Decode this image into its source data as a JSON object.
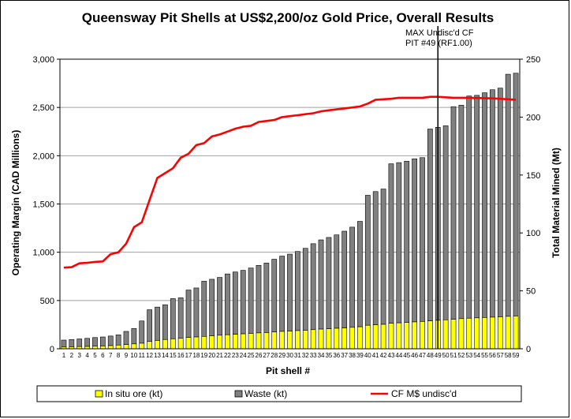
{
  "chart_data": {
    "type": "bar",
    "title": "Queensway Pit Shells at US$2,200/oz Gold Price, Overall Results",
    "xlabel": "Pit shell #",
    "ylabel": "Operating Margin (CAD  Millions)",
    "y2label": "Total Material Mined (Mt)",
    "ylim": [
      0,
      3000
    ],
    "y2lim": [
      0,
      250
    ],
    "yticks": [
      "0",
      "500",
      "1,000",
      "1,500",
      "2,000",
      "2,500",
      "3,000"
    ],
    "y2ticks": [
      "0",
      "50",
      "100",
      "150",
      "200",
      "250"
    ],
    "grid": true,
    "legend_position": "bottom",
    "categories": [
      "1",
      "2",
      "3",
      "4",
      "5",
      "6",
      "7",
      "8",
      "9",
      "10",
      "11",
      "12",
      "13",
      "14",
      "15",
      "16",
      "17",
      "18",
      "19",
      "20",
      "21",
      "22",
      "23",
      "24",
      "25",
      "26",
      "27",
      "28",
      "29",
      "30",
      "31",
      "32",
      "33",
      "34",
      "35",
      "36",
      "37",
      "38",
      "39",
      "40",
      "41",
      "42",
      "43",
      "44",
      "45",
      "46",
      "47",
      "48",
      "49",
      "50",
      "51",
      "52",
      "53",
      "54",
      "55",
      "56",
      "57",
      "58",
      "59"
    ],
    "series": [
      {
        "name": "In situ ore (kt)",
        "axis": "right",
        "style": "stacked-bar",
        "color": "#ffff00",
        "values": [
          1.5,
          1.7,
          1.9,
          2.0,
          2.2,
          2.4,
          2.7,
          3.2,
          3.7,
          4.2,
          4.8,
          6.3,
          7.2,
          8.0,
          8.6,
          9.0,
          9.8,
          10.2,
          10.7,
          11.2,
          11.7,
          12.1,
          12.5,
          12.9,
          13.3,
          13.7,
          14.0,
          14.5,
          15.0,
          15.3,
          15.7,
          16.0,
          16.5,
          17.0,
          17.3,
          17.7,
          18.0,
          18.5,
          19.0,
          20.3,
          20.7,
          21.1,
          22.0,
          22.4,
          22.8,
          23.2,
          23.6,
          24.1,
          24.6,
          25.0,
          25.5,
          26.0,
          26.4,
          26.7,
          27.0,
          27.3,
          27.6,
          28.0,
          28.3
        ]
      },
      {
        "name": "Waste (kt)",
        "axis": "right",
        "style": "stacked-bar",
        "color": "#808080",
        "values": [
          6.0,
          6.3,
          6.6,
          7.0,
          7.5,
          7.8,
          8.3,
          8.8,
          11.3,
          13.3,
          19.2,
          27.4,
          28.8,
          30.0,
          34.7,
          35.0,
          40.9,
          42.3,
          47.6,
          48.8,
          49.9,
          52.5,
          53.8,
          54.8,
          56.4,
          58.3,
          60.0,
          62.8,
          65.0,
          66.4,
          68.3,
          70.7,
          74.2,
          77.0,
          78.8,
          80.6,
          83.5,
          86.5,
          91.0,
          112.2,
          115.0,
          116.8,
          137.7,
          138.3,
          139.1,
          140.8,
          141.4,
          165.6,
          166.6,
          167.5,
          183.5,
          184.3,
          191.8,
          192.1,
          194.0,
          196.3,
          197.4,
          209.0,
          209.6
        ]
      },
      {
        "name": "CF M$ undisc'd",
        "axis": "left",
        "style": "line",
        "color": "#ff0000",
        "values": [
          840,
          845,
          885,
          890,
          900,
          905,
          980,
          1000,
          1090,
          1260,
          1310,
          1540,
          1770,
          1820,
          1870,
          1980,
          2020,
          2110,
          2130,
          2200,
          2220,
          2250,
          2280,
          2300,
          2310,
          2350,
          2360,
          2370,
          2400,
          2410,
          2420,
          2430,
          2440,
          2460,
          2470,
          2480,
          2490,
          2500,
          2510,
          2540,
          2580,
          2585,
          2590,
          2600,
          2600,
          2600,
          2600,
          2610,
          2610,
          2605,
          2600,
          2600,
          2600,
          2598,
          2596,
          2594,
          2590,
          2585,
          2580
        ]
      }
    ],
    "annotation": {
      "at_category": "49",
      "lines": [
        "MAX Undisc'd CF",
        "PIT #49 (RF1.00)"
      ]
    }
  }
}
